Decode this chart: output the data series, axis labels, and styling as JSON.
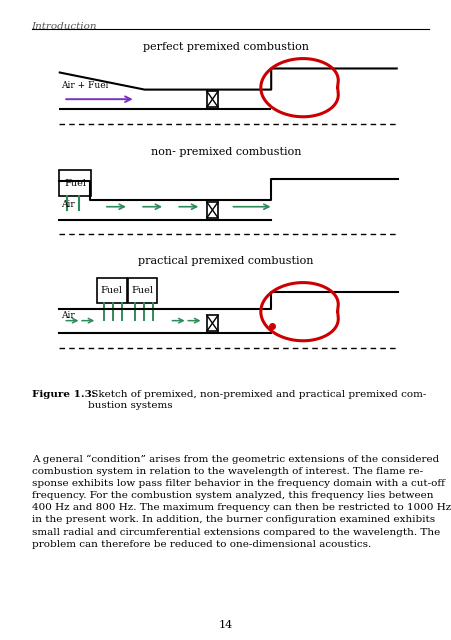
{
  "page_header": "Introduction",
  "title1": "perfect premixed combustion",
  "title2": "non- premixed combustion",
  "title3": "practical premixed combustion",
  "figure_label": "Figure 1.3:",
  "figure_caption": " Sketch of premixed, non-premixed and practical premixed com-\nbustion systems",
  "page_number": "14",
  "body_text": "A general “condition” arises from the geometric extensions of the considered\ncombustion system in relation to the wavelength of interest. The flame re-\nsponse exhibits low pass filter behavior in the frequency domain with a cut-off\nfrequency. For the combustion system analyzed, this frequency lies between\n400 Hz and 800 Hz. The maximum frequency can then be restricted to 1000 Hz\nin the present work. In addition, the burner configuration examined exhibits\nsmall radial and circumferential extensions compared to the wavelength. The\nproblem can therefore be reduced to one-dimensional acoustics.",
  "bg_color": "#ffffff",
  "text_color": "#000000",
  "arrow_purple": "#7B2FBE",
  "arrow_green": "#2E8B57",
  "flame_red": "#CC0000",
  "duct_color": "#000000"
}
